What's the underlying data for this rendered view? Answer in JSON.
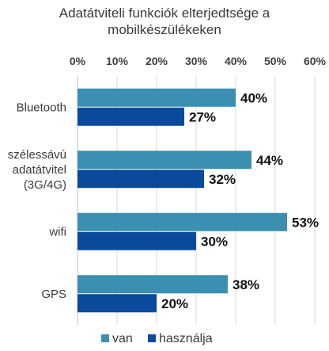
{
  "chart_data": {
    "type": "bar",
    "orientation": "horizontal",
    "title": "Adatátviteli funkciók elterjedtsége a mobilkészülékeken",
    "title_lines": [
      "Adatátviteli funkciók elterjedtsége a",
      "mobilkészülékeken"
    ],
    "categories": [
      "Bluetooth",
      "szélessávú adatátvitel (3G/4G)",
      "wifi",
      "GPS"
    ],
    "category_lines": [
      [
        "Bluetooth"
      ],
      [
        "szélessávú",
        "adatátvitel",
        "(3G/4G)"
      ],
      [
        "wifi"
      ],
      [
        "GPS"
      ]
    ],
    "series": [
      {
        "name": "van",
        "color": "#3b90b1",
        "values": [
          40,
          44,
          53,
          38
        ],
        "labels": [
          "40%",
          "44%",
          "53%",
          "38%"
        ]
      },
      {
        "name": "használja",
        "color": "#0a4a9c",
        "values": [
          27,
          32,
          30,
          20
        ],
        "labels": [
          "27%",
          "32%",
          "30%",
          "20%"
        ]
      }
    ],
    "xlim": [
      0,
      60
    ],
    "x_ticks": [
      0,
      10,
      20,
      30,
      40,
      50,
      60
    ],
    "x_tick_labels": [
      "0%",
      "10%",
      "20%",
      "30%",
      "40%",
      "50%",
      "60%"
    ],
    "xaxis_position": "top",
    "grid": true,
    "legend_position": "bottom-left"
  }
}
